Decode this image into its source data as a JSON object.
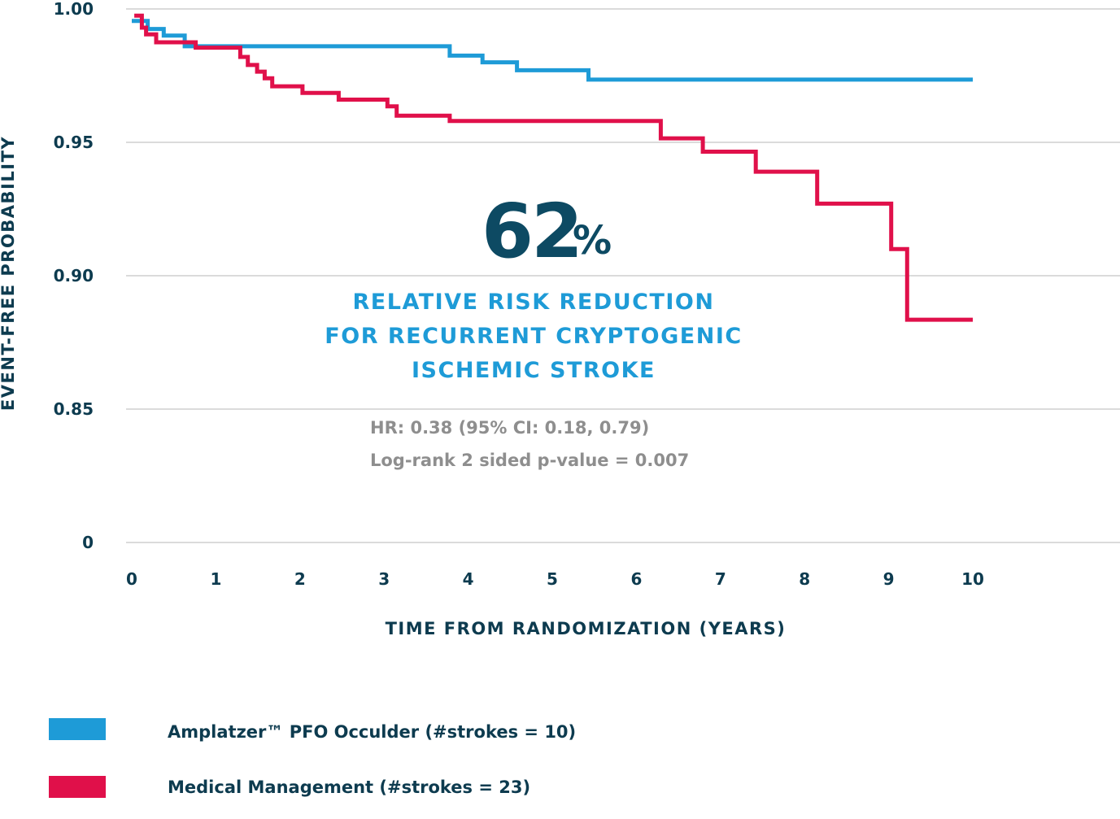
{
  "colors": {
    "device": "#1e9bd7",
    "medical": "#e0104a",
    "dark": "#0d3b4f",
    "stat": "#0d4a63",
    "note": "#8e8e8e"
  },
  "chart_data": {
    "type": "line",
    "step": true,
    "xlabel": "TIME FROM RANDOMIZATION (YEARS)",
    "ylabel": "EVENT-FREE PROBABILITY",
    "xlim": [
      0,
      10
    ],
    "ylim_broken": [
      0.85,
      1.0
    ],
    "x_ticks": [
      0,
      1,
      2,
      3,
      4,
      5,
      6,
      7,
      8,
      9,
      10
    ],
    "y_ticks": [
      "1.00",
      "0.95",
      "0.90",
      "0.85",
      "0"
    ],
    "grid": true,
    "series": [
      {
        "name": "Amplatzer™ PFO Occulder (#strokes = 10)",
        "color": "#1e9bd7",
        "points": [
          [
            0.0,
            0.9955
          ],
          [
            0.19,
            0.9955
          ],
          [
            0.19,
            0.9925
          ],
          [
            0.38,
            0.9925
          ],
          [
            0.38,
            0.99
          ],
          [
            0.63,
            0.99
          ],
          [
            0.63,
            0.986
          ],
          [
            3.78,
            0.986
          ],
          [
            3.78,
            0.9825
          ],
          [
            4.17,
            0.9825
          ],
          [
            4.17,
            0.98
          ],
          [
            4.58,
            0.98
          ],
          [
            4.58,
            0.977
          ],
          [
            5.43,
            0.977
          ],
          [
            5.43,
            0.9735
          ],
          [
            10.0,
            0.9735
          ]
        ]
      },
      {
        "name": "Medical Management (#strokes = 23)",
        "color": "#e0104a",
        "points": [
          [
            0.03,
            0.9975
          ],
          [
            0.12,
            0.9975
          ],
          [
            0.12,
            0.993
          ],
          [
            0.17,
            0.993
          ],
          [
            0.17,
            0.9905
          ],
          [
            0.29,
            0.9905
          ],
          [
            0.29,
            0.9875
          ],
          [
            0.76,
            0.9875
          ],
          [
            0.76,
            0.9855
          ],
          [
            1.29,
            0.9855
          ],
          [
            1.29,
            0.982
          ],
          [
            1.38,
            0.982
          ],
          [
            1.38,
            0.979
          ],
          [
            1.49,
            0.979
          ],
          [
            1.49,
            0.9765
          ],
          [
            1.58,
            0.9765
          ],
          [
            1.58,
            0.974
          ],
          [
            1.67,
            0.974
          ],
          [
            1.67,
            0.971
          ],
          [
            2.03,
            0.971
          ],
          [
            2.03,
            0.9685
          ],
          [
            2.46,
            0.9685
          ],
          [
            2.46,
            0.966
          ],
          [
            3.04,
            0.966
          ],
          [
            3.04,
            0.9635
          ],
          [
            3.15,
            0.9635
          ],
          [
            3.15,
            0.96
          ],
          [
            3.78,
            0.96
          ],
          [
            3.78,
            0.958
          ],
          [
            6.29,
            0.958
          ],
          [
            6.29,
            0.9515
          ],
          [
            6.79,
            0.9515
          ],
          [
            6.79,
            0.9465
          ],
          [
            7.42,
            0.9465
          ],
          [
            7.42,
            0.939
          ],
          [
            8.15,
            0.939
          ],
          [
            8.15,
            0.927
          ],
          [
            9.03,
            0.927
          ],
          [
            9.03,
            0.91
          ],
          [
            9.22,
            0.91
          ],
          [
            9.22,
            0.8835
          ],
          [
            10.0,
            0.8835
          ]
        ]
      }
    ],
    "annotations": {
      "stat_value": "62",
      "stat_unit": "%",
      "headline_lines": [
        "RELATIVE RISK REDUCTION",
        "FOR RECURRENT CRYPTOGENIC",
        "ISCHEMIC STROKE"
      ],
      "hr": "HR: 0.38 (95% CI: 0.18, 0.79)",
      "pvalue": "Log-rank 2 sided p-value = 0.007"
    }
  },
  "legend": {
    "items": [
      {
        "label": "Amplatzer™ PFO Occulder (#strokes = 10)",
        "color": "#1e9bd7"
      },
      {
        "label": "Medical Management (#strokes = 23)",
        "color": "#e0104a"
      }
    ]
  }
}
